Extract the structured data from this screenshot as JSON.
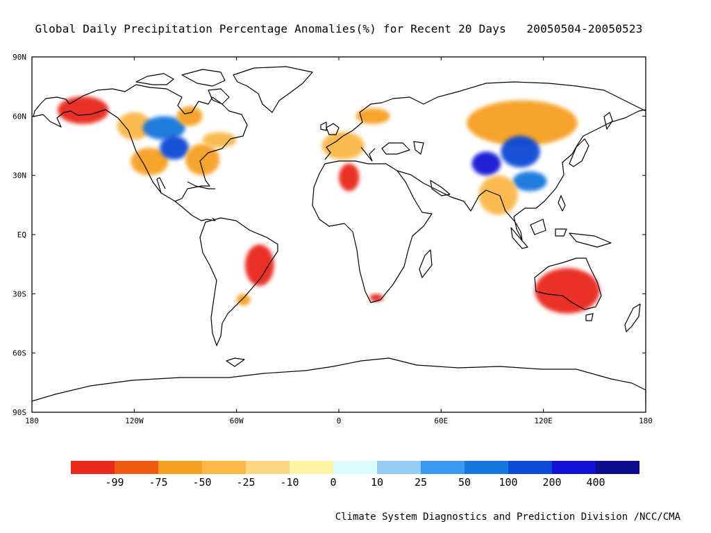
{
  "title": "Global Daily Precipitation Percentage Anomalies(%) for Recent 20 Days   20050504-20050523",
  "credit": "Climate System Diagnostics and Prediction Division /NCC/CMA",
  "map": {
    "projection": "cylindrical equidistant",
    "lon_range": [
      -180,
      180
    ],
    "lat_range": [
      -90,
      90
    ],
    "lat_ticks": [
      {
        "lat": 90,
        "label": "90N"
      },
      {
        "lat": 60,
        "label": "60N"
      },
      {
        "lat": 30,
        "label": "30N"
      },
      {
        "lat": 0,
        "label": "EQ"
      },
      {
        "lat": -30,
        "label": "30S"
      },
      {
        "lat": -60,
        "label": "60S"
      },
      {
        "lat": -90,
        "label": "90S"
      }
    ],
    "lon_ticks": [
      {
        "lon": -180,
        "label": "180"
      },
      {
        "lon": -120,
        "label": "120W"
      },
      {
        "lon": -60,
        "label": "60W"
      },
      {
        "lon": 0,
        "label": "0"
      },
      {
        "lon": 60,
        "label": "60E"
      },
      {
        "lon": 120,
        "label": "120E"
      },
      {
        "lon": 180,
        "label": "180"
      }
    ]
  },
  "colorbar": {
    "colors": [
      "#e8281a",
      "#ef5a14",
      "#f5a020",
      "#fbb748",
      "#fdd784",
      "#fdf3a4",
      "#dcfcfc",
      "#98cbf5",
      "#3c98ee",
      "#1676dc",
      "#0c4ad6",
      "#1212d4",
      "#0c0c8c"
    ],
    "labels": [
      "-99",
      "-75",
      "-50",
      "-25",
      "-10",
      "0",
      "10",
      "25",
      "50",
      "100",
      "200",
      "400"
    ]
  },
  "anomaly_areas": [
    {
      "region": "Alaska / NW Canada",
      "lon": [
        -165,
        -135
      ],
      "lat": [
        56,
        70
      ],
      "class": "-99"
    },
    {
      "region": "Western Canada",
      "lon": [
        -130,
        -110
      ],
      "lat": [
        48,
        62
      ],
      "class": "-50"
    },
    {
      "region": "Central Canada",
      "lon": [
        -115,
        -90
      ],
      "lat": [
        48,
        60
      ],
      "class": "50"
    },
    {
      "region": "Hudson Bay",
      "lon": [
        -95,
        -80
      ],
      "lat": [
        55,
        65
      ],
      "class": "-75"
    },
    {
      "region": "Western USA",
      "lon": [
        -122,
        -100
      ],
      "lat": [
        30,
        44
      ],
      "class": "-75"
    },
    {
      "region": "Central USA",
      "lon": [
        -105,
        -88
      ],
      "lat": [
        38,
        50
      ],
      "class": "100"
    },
    {
      "region": "Eastern USA",
      "lon": [
        -90,
        -70
      ],
      "lat": [
        30,
        46
      ],
      "class": "-75"
    },
    {
      "region": "Eastern Canada",
      "lon": [
        -80,
        -60
      ],
      "lat": [
        44,
        52
      ],
      "class": "-50"
    },
    {
      "region": "Brazil",
      "lon": [
        -55,
        -38
      ],
      "lat": [
        -26,
        -5
      ],
      "class": "-99"
    },
    {
      "region": "Uruguay",
      "lon": [
        -60,
        -52
      ],
      "lat": [
        -36,
        -30
      ],
      "class": "-75"
    },
    {
      "region": "Western Europe",
      "lon": [
        -10,
        15
      ],
      "lat": [
        38,
        52
      ],
      "class": "-50"
    },
    {
      "region": "Scandinavia",
      "lon": [
        10,
        30
      ],
      "lat": [
        56,
        64
      ],
      "class": "-75"
    },
    {
      "region": "North Africa",
      "lon": [
        0,
        12
      ],
      "lat": [
        22,
        36
      ],
      "class": "-99"
    },
    {
      "region": "Southern Africa",
      "lon": [
        18,
        26
      ],
      "lat": [
        -34,
        -30
      ],
      "class": "-99"
    },
    {
      "region": "Siberia / Mongolia",
      "lon": [
        75,
        140
      ],
      "lat": [
        45,
        68
      ],
      "class": "-75"
    },
    {
      "region": "Tibet / Central Asia",
      "lon": [
        78,
        95
      ],
      "lat": [
        30,
        42
      ],
      "class": "200"
    },
    {
      "region": "Northern China",
      "lon": [
        95,
        118
      ],
      "lat": [
        34,
        50
      ],
      "class": "100"
    },
    {
      "region": "South China",
      "lon": [
        102,
        122
      ],
      "lat": [
        22,
        32
      ],
      "class": "50"
    },
    {
      "region": "India / Indochina",
      "lon": [
        82,
        105
      ],
      "lat": [
        10,
        30
      ],
      "class": "-50"
    },
    {
      "region": "Australia",
      "lon": [
        115,
        153
      ],
      "lat": [
        -40,
        -17
      ],
      "class": "-99"
    }
  ]
}
